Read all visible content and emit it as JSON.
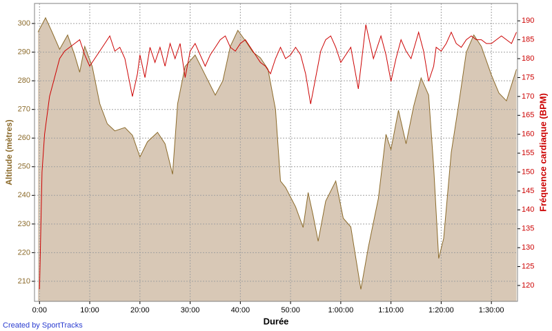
{
  "chart_data": {
    "type": "area",
    "x_label": "Durée",
    "y_label": "Altitude (mètres)",
    "y2_label": "Fréquence cardiaque (BPM)",
    "footer": "Created by SportTracks",
    "grid": true,
    "xlim": [
      -1,
      95.2
    ],
    "xticks": [
      {
        "value": 0,
        "label": "0:00"
      },
      {
        "value": 10,
        "label": "10:00"
      },
      {
        "value": 20,
        "label": "20:00"
      },
      {
        "value": 30,
        "label": "30:00"
      },
      {
        "value": 40,
        "label": "40:00"
      },
      {
        "value": 50,
        "label": "50:00"
      },
      {
        "value": 60,
        "label": "1:00:00"
      },
      {
        "value": 70,
        "label": "1:10:00"
      },
      {
        "value": 80,
        "label": "1:20:00"
      },
      {
        "value": 90,
        "label": "1:30:00"
      }
    ],
    "ylim": [
      203,
      307
    ],
    "yticks": [
      210,
      220,
      230,
      240,
      250,
      260,
      270,
      280,
      290,
      300
    ],
    "y2lim": [
      115.8,
      194.6
    ],
    "y2ticks": [
      120,
      125,
      130,
      135,
      140,
      145,
      150,
      155,
      160,
      165,
      170,
      175,
      180,
      185,
      190
    ],
    "series": [
      {
        "name": "Altitude",
        "type": "area",
        "axis": "y",
        "color": "#8b6a2a",
        "fill": "#d8c8b6",
        "x": [
          -0.3,
          1.2,
          2.5,
          4,
          5.6,
          7,
          8,
          9,
          10.5,
          12,
          13.5,
          15,
          17,
          18.5,
          20,
          21.5,
          23.5,
          25,
          26.5,
          27.5,
          29,
          31,
          33,
          35,
          36.5,
          38,
          39.5,
          41,
          42.5,
          44,
          45.5,
          47,
          48,
          49,
          51,
          52.5,
          53.5,
          54.5,
          55.5,
          57,
          59,
          60.5,
          62,
          64,
          65.5,
          67.5,
          69,
          70,
          71.5,
          73,
          74.5,
          76,
          77.5,
          78.5,
          79.5,
          80.5,
          82,
          83.5,
          85,
          86.5,
          88,
          90,
          91.5,
          93,
          95
        ],
        "values": [
          297,
          302,
          297,
          291,
          296,
          289,
          283,
          292,
          285,
          272,
          265,
          262.5,
          263.7,
          261,
          253.4,
          258.7,
          262,
          258,
          247.4,
          272,
          285,
          289,
          282,
          275,
          280,
          292,
          297.6,
          294,
          290,
          288,
          284,
          270,
          245,
          242.8,
          236,
          228.8,
          241,
          233,
          224,
          238,
          245,
          232,
          229,
          207.2,
          222,
          239,
          261.3,
          256,
          269.7,
          258,
          271,
          281,
          275,
          250,
          218,
          225,
          255,
          272,
          290,
          296,
          292,
          282,
          275.7,
          273,
          284
        ]
      },
      {
        "name": "Fréquence cardiaque",
        "type": "line",
        "axis": "y2",
        "color": "#cc0000",
        "x": [
          0,
          0.5,
          1,
          1.5,
          2,
          3,
          4,
          5,
          6,
          7,
          8,
          9,
          10,
          11,
          12,
          13,
          14,
          15,
          16,
          17,
          18.5,
          19.5,
          20,
          21,
          22,
          23,
          24,
          25,
          26,
          27,
          28,
          29,
          30,
          31,
          32,
          33,
          34,
          35,
          36,
          37,
          38,
          39,
          40,
          41,
          42,
          43,
          44,
          45,
          46,
          47,
          48,
          49,
          50,
          51,
          52,
          53,
          54,
          55,
          56,
          57,
          58,
          59,
          60,
          61,
          62,
          63.5,
          65,
          66.5,
          68,
          69,
          70,
          71,
          72,
          73,
          74,
          75.5,
          76.5,
          77.5,
          78.5,
          79,
          80,
          81,
          82,
          83,
          84,
          85,
          86,
          87,
          88,
          89,
          90,
          91,
          92,
          93,
          94,
          95
        ],
        "values": [
          119,
          150,
          160,
          165,
          170,
          175,
          180,
          182,
          183,
          184,
          185,
          181,
          178,
          180,
          182,
          184,
          186,
          182,
          183,
          180,
          170,
          176,
          181,
          175,
          183,
          179,
          183,
          178,
          184,
          180,
          184,
          175,
          182,
          184,
          181,
          178,
          181,
          183,
          185,
          186,
          183,
          182,
          184,
          185,
          183,
          181,
          179,
          178,
          176,
          180,
          183,
          180,
          181,
          183,
          181,
          176,
          168,
          175,
          182,
          185,
          186,
          183,
          179,
          181,
          183,
          172,
          189,
          180,
          186,
          181,
          174,
          180,
          185,
          182,
          180,
          187,
          182,
          174,
          178,
          183,
          182,
          184,
          187,
          184,
          183,
          185,
          186,
          185,
          185,
          184,
          184,
          185,
          186,
          185,
          184,
          187
        ]
      }
    ]
  }
}
